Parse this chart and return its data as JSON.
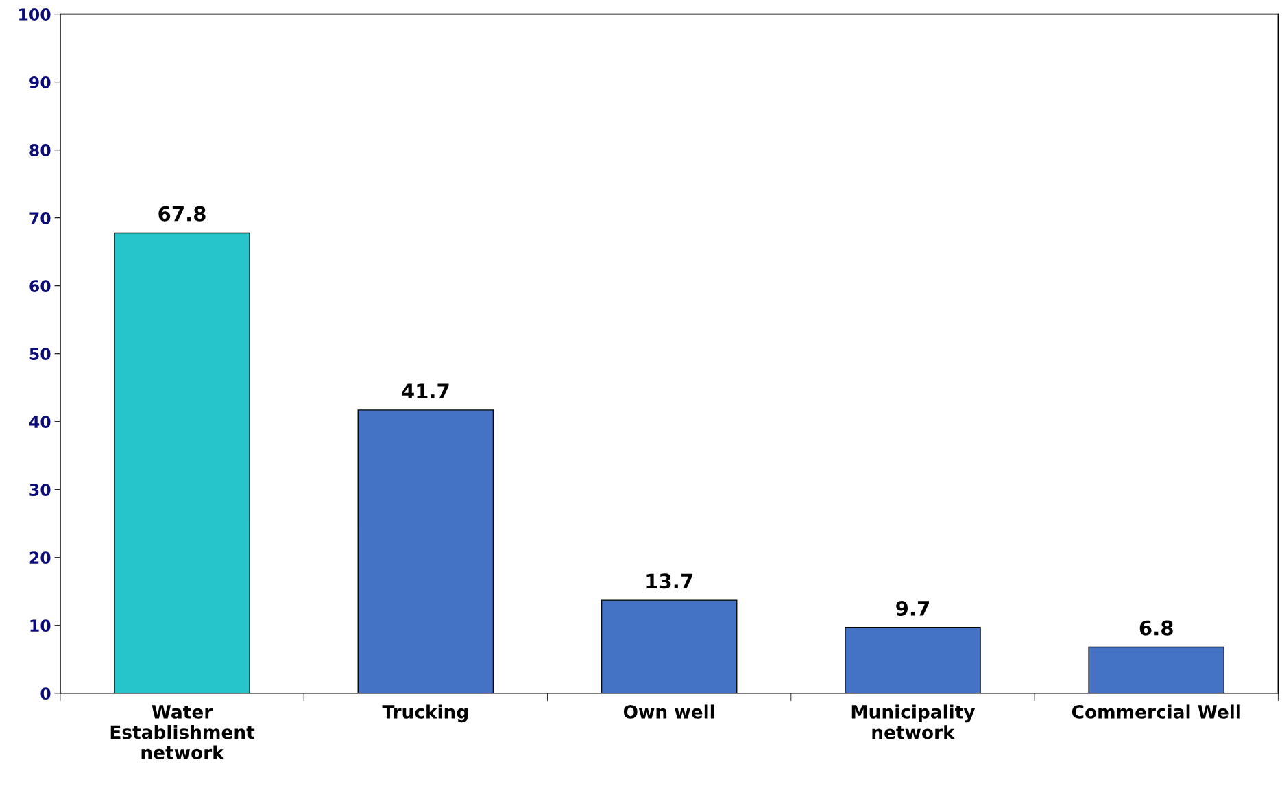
{
  "chart_data": {
    "type": "bar",
    "categories": [
      "Water\nEstablishment\nnetwork",
      "Trucking",
      "Own well",
      "Municipality\nnetwork",
      "Commercial Well"
    ],
    "values": [
      67.8,
      41.7,
      13.7,
      9.7,
      6.8
    ],
    "colors": [
      "#26c4cb",
      "#4472c4",
      "#4472c4",
      "#4472c4",
      "#4472c4"
    ],
    "ylim": [
      0,
      100
    ],
    "yticks": [
      0,
      10,
      20,
      30,
      40,
      50,
      60,
      70,
      80,
      90,
      100
    ],
    "data_labels": true,
    "grid": false,
    "legend": false
  }
}
